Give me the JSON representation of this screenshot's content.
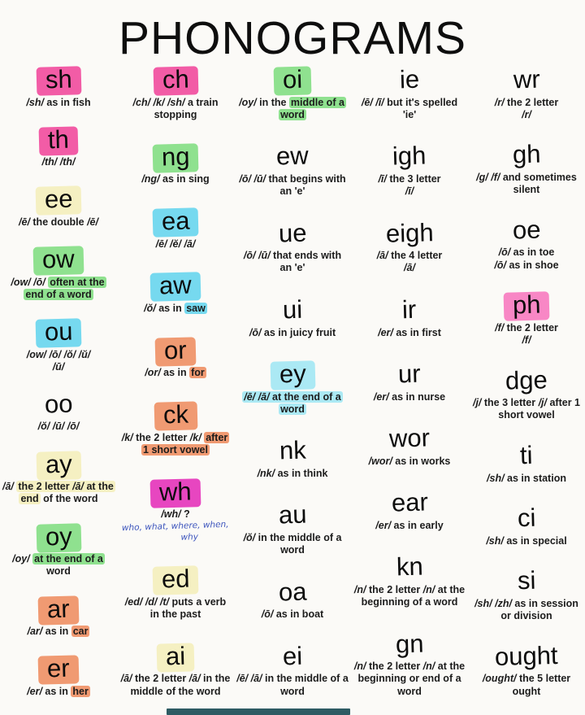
{
  "title": "PHONOGRAMS",
  "colors": {
    "pink": "#f25ca6",
    "magenta": "#e746c0",
    "lightpink": "#f887c5",
    "green": "#8fe18f",
    "cyan": "#76d9ef",
    "lightcyan": "#abe9f4",
    "yellow": "#f5f0c2",
    "orange": "#f09a72",
    "paper": "#fbfaf7",
    "ink": "#151515",
    "blue": "#3d55bd",
    "teal": "#2e5b63"
  },
  "columns": [
    [
      {
        "head": "sh",
        "head_color": "pink",
        "desc": "/sh/ as in fish"
      },
      {
        "head": "th",
        "head_color": "pink",
        "desc": "/th/ /th/"
      },
      {
        "head": "ee",
        "head_color": "yellow",
        "desc": "/ē/ the double /ē/"
      },
      {
        "head": "ow",
        "head_color": "green",
        "desc": "/ow/ /ō/ often at the end of a word",
        "mark": "often at the end of a word",
        "mark_color": "green"
      },
      {
        "head": "ou",
        "head_color": "cyan",
        "desc": "/ow/ /ō/ /ŏ/ /ŭ/\n/ū/"
      },
      {
        "head": "oo",
        "head_color": null,
        "desc": "/ŏ/ /ū/ /ō/"
      },
      {
        "head": "ay",
        "head_color": "yellow",
        "desc": "/ā/ the 2 letter /ā/ at the end of the word",
        "mark": "the 2 letter /ā/ at the end",
        "mark_color": "yellow"
      },
      {
        "head": "oy",
        "head_color": "green",
        "desc": "/oy/ at the end of a word",
        "mark": "at the end of a",
        "mark_color": "green"
      },
      {
        "head": "ar",
        "head_color": "orange",
        "desc": "/ar/ as in car",
        "mark": "car",
        "mark_color": "orange"
      },
      {
        "head": "er",
        "head_color": "orange",
        "desc": "/er/ as in her",
        "mark": "her",
        "mark_color": "orange"
      }
    ],
    [
      {
        "head": "ch",
        "head_color": "pink",
        "desc": "/ch/ /k/ /sh/ a train stopping"
      },
      {
        "head": "ng",
        "head_color": "green",
        "desc": "/ng/ as in sing"
      },
      {
        "head": "ea",
        "head_color": "cyan",
        "desc": "/ē/ /ĕ/ /ā/"
      },
      {
        "head": "aw",
        "head_color": "cyan",
        "desc": "/ŏ/ as in saw",
        "mark": "saw",
        "mark_color": "cyan"
      },
      {
        "head": "or",
        "head_color": "orange",
        "desc": "/or/ as in for",
        "mark": "for",
        "mark_color": "orange"
      },
      {
        "head": "ck",
        "head_color": "orange",
        "desc": "/k/ the 2 letter /k/ after 1 short vowel",
        "mark": "after 1 short vowel",
        "mark_color": "orange"
      },
      {
        "head": "wh",
        "head_color": "magenta",
        "desc": "/wh/ ?",
        "handwriting": [
          "who, what, where, when,",
          "why"
        ]
      },
      {
        "head": "ed",
        "head_color": "yellow",
        "desc": "/ed/ /d/ /t/ puts a verb in the past"
      },
      {
        "head": "ai",
        "head_color": "yellow",
        "desc": "/ā/ the 2 letter /ā/ in the middle of the word"
      }
    ],
    [
      {
        "head": "oi",
        "head_color": "green",
        "desc": "/oy/ in the middle of a word",
        "mark": "middle of a word",
        "mark_color": "green"
      },
      {
        "head": "ew",
        "head_color": null,
        "desc": "/ō/ /ū/ that begins with an 'e'"
      },
      {
        "head": "ue",
        "head_color": null,
        "desc": "/ō/ /ū/ that ends with an 'e'"
      },
      {
        "head": "ui",
        "head_color": null,
        "desc": "/ō/ as in juicy fruit"
      },
      {
        "head": "ey",
        "head_color": "lightcyan",
        "desc": "/ē/ /ā/ at the end of a word",
        "mark": "/ē/ /ā/ at the end of a word",
        "mark_color": "lightcyan"
      },
      {
        "head": "nk",
        "head_color": null,
        "desc": "/nk/ as in think"
      },
      {
        "head": "au",
        "head_color": null,
        "desc": "/ŏ/ in the middle of a word"
      },
      {
        "head": "oa",
        "head_color": null,
        "desc": "/ō/ as in boat"
      },
      {
        "head": "ei",
        "head_color": null,
        "desc": "/ē/ /ā/ in the middle of a word"
      }
    ],
    [
      {
        "head": "ie",
        "head_color": null,
        "desc": "/ē/ /ī/ but it's spelled 'ie'"
      },
      {
        "head": "igh",
        "head_color": null,
        "desc": "/ī/ the 3 letter\n/ī/"
      },
      {
        "head": "eigh",
        "head_color": null,
        "desc": "/ā/ the 4 letter\n/ā/"
      },
      {
        "head": "ir",
        "head_color": null,
        "desc": "/er/ as in first"
      },
      {
        "head": "ur",
        "head_color": null,
        "desc": "/er/ as in nurse"
      },
      {
        "head": "wor",
        "head_color": null,
        "desc": "/wor/ as in works"
      },
      {
        "head": "ear",
        "head_color": null,
        "desc": "/er/ as in early"
      },
      {
        "head": "kn",
        "head_color": null,
        "desc": "/n/ the 2 letter /n/ at the beginning of a word"
      },
      {
        "head": "gn",
        "head_color": null,
        "desc": "/n/ the 2 letter /n/ at the beginning or end of a word"
      }
    ],
    [
      {
        "head": "wr",
        "head_color": null,
        "desc": "/r/ the 2 letter\n/r/"
      },
      {
        "head": "gh",
        "head_color": null,
        "desc": "/g/ /f/ and sometimes silent"
      },
      {
        "head": "oe",
        "head_color": null,
        "desc": "/ō/ as in toe\n/ō/ as in shoe"
      },
      {
        "head": "ph",
        "head_color": "lightpink",
        "desc": "/f/ the 2 letter\n/f/"
      },
      {
        "head": "dge",
        "head_color": null,
        "desc": "/j/ the 3 letter /j/ after 1 short vowel"
      },
      {
        "head": "ti",
        "head_color": null,
        "desc": "/sh/ as in station"
      },
      {
        "head": "ci",
        "head_color": null,
        "desc": "/sh/ as in special"
      },
      {
        "head": "si",
        "head_color": null,
        "desc": "/sh/ /zh/ as in session or division"
      },
      {
        "head": "ought",
        "head_color": null,
        "desc": "/ought/ the 5 letter ought"
      }
    ]
  ]
}
